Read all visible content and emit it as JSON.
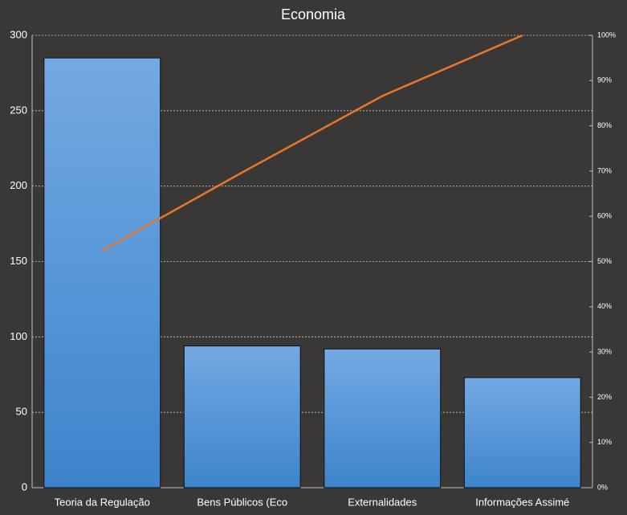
{
  "chart_data": {
    "type": "pareto",
    "title": "Economia",
    "categories": [
      "Teoria da Regulação",
      "Bens Públicos (Eco",
      "Externalidades",
      "Informações Assimé"
    ],
    "values": [
      285,
      94,
      92,
      73
    ],
    "color": "#4a8fd6",
    "line": {
      "values": [
        52.4,
        69.7,
        86.6,
        100
      ],
      "color": "#e8772e",
      "axis": "y2"
    },
    "ylim": [
      0,
      300
    ],
    "yticks": [
      0,
      50,
      100,
      150,
      200,
      250,
      300
    ],
    "y2lim": [
      0,
      100
    ],
    "y2ticks": [
      {
        "value": 0,
        "label": "0%"
      },
      {
        "value": 10,
        "label": "10%"
      },
      {
        "value": 20,
        "label": "20%"
      },
      {
        "value": 30,
        "label": "30%"
      },
      {
        "value": 40,
        "label": "40%"
      },
      {
        "value": 50,
        "label": "50%"
      },
      {
        "value": 60,
        "label": "60%"
      },
      {
        "value": 70,
        "label": "70%"
      },
      {
        "value": 80,
        "label": "80%"
      },
      {
        "value": 90,
        "label": "90%"
      },
      {
        "value": 100,
        "label": "100%"
      }
    ],
    "grid": true
  }
}
